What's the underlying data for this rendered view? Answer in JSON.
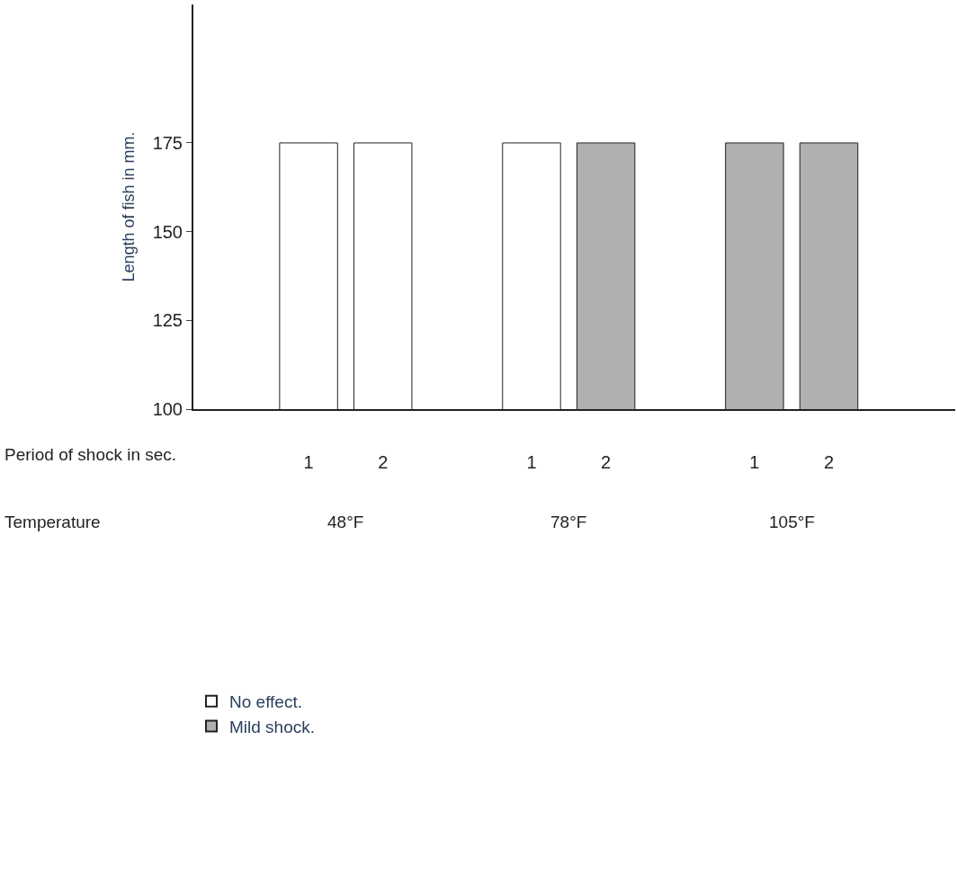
{
  "chart_data": {
    "type": "bar",
    "ylabel": "Length of fish in mm.",
    "categories": [
      null,
      "1",
      "2",
      null,
      "1",
      "2",
      null,
      "1",
      "2",
      null
    ],
    "series": [
      {
        "name": "No effect.",
        "color": "#ffffff",
        "values": [
          null,
          175,
          175,
          null,
          175,
          null,
          null,
          null,
          null,
          null
        ]
      },
      {
        "name": "Mild shock.",
        "color": "#b0b0b0",
        "values": [
          null,
          null,
          null,
          null,
          null,
          175,
          null,
          175,
          175,
          null
        ]
      }
    ],
    "ylim": [
      100,
      214
    ],
    "yticks": [
      100,
      125,
      150,
      175
    ],
    "grid": false,
    "legend": "bottom left",
    "annotations": [
      "Period of shock in sec.",
      "Temperature",
      "48°F",
      "78°F",
      "105°F"
    ]
  }
}
